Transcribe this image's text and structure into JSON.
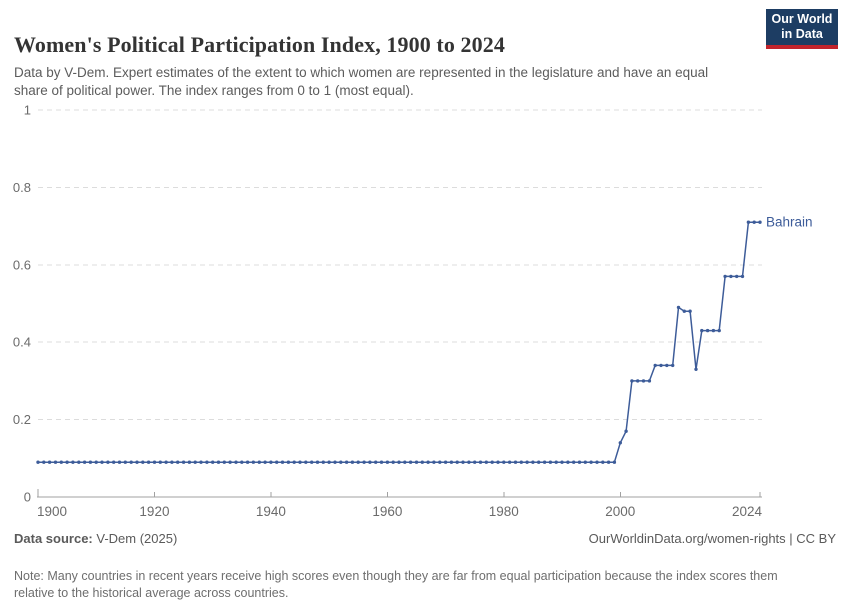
{
  "header": {
    "title": "Women's Political Participation Index, 1900 to 2024",
    "subtitle": "Data by V-Dem. Expert estimates of the extent to which women are represented in the legislature and have an equal share of political power. The index ranges from 0 to 1 (most equal).",
    "logo": {
      "line1": "Our World",
      "line2": "in Data",
      "bg_color": "#1d3d63",
      "accent_color": "#c2242c"
    }
  },
  "chart_data": {
    "type": "line",
    "title": "Women's Political Participation Index, 1900 to 2024",
    "xlabel": "",
    "ylabel": "",
    "xlim": [
      1900,
      2024
    ],
    "ylim": [
      0,
      1
    ],
    "x_ticks": [
      1900,
      1920,
      1940,
      1960,
      1980,
      2000,
      2024
    ],
    "y_ticks": [
      0,
      0.2,
      0.4,
      0.6,
      0.8,
      1
    ],
    "y_tick_labels": [
      "0",
      "0.2",
      "0.4",
      "0.6",
      "0.8",
      "1"
    ],
    "grid": "horizontal-dashed",
    "legend_position": "end-of-line-label",
    "colors": {
      "line": "#3d5c99",
      "gridline": "#dcdcdc",
      "axis": "#a1a1a1",
      "tick_label": "#6b6b6b"
    },
    "series": [
      {
        "name": "Bahrain",
        "color": "#3d5c99",
        "marker": "circle",
        "x_start": 1900,
        "x_step": 1,
        "values": [
          0.09,
          0.09,
          0.09,
          0.09,
          0.09,
          0.09,
          0.09,
          0.09,
          0.09,
          0.09,
          0.09,
          0.09,
          0.09,
          0.09,
          0.09,
          0.09,
          0.09,
          0.09,
          0.09,
          0.09,
          0.09,
          0.09,
          0.09,
          0.09,
          0.09,
          0.09,
          0.09,
          0.09,
          0.09,
          0.09,
          0.09,
          0.09,
          0.09,
          0.09,
          0.09,
          0.09,
          0.09,
          0.09,
          0.09,
          0.09,
          0.09,
          0.09,
          0.09,
          0.09,
          0.09,
          0.09,
          0.09,
          0.09,
          0.09,
          0.09,
          0.09,
          0.09,
          0.09,
          0.09,
          0.09,
          0.09,
          0.09,
          0.09,
          0.09,
          0.09,
          0.09,
          0.09,
          0.09,
          0.09,
          0.09,
          0.09,
          0.09,
          0.09,
          0.09,
          0.09,
          0.09,
          0.09,
          0.09,
          0.09,
          0.09,
          0.09,
          0.09,
          0.09,
          0.09,
          0.09,
          0.09,
          0.09,
          0.09,
          0.09,
          0.09,
          0.09,
          0.09,
          0.09,
          0.09,
          0.09,
          0.09,
          0.09,
          0.09,
          0.09,
          0.09,
          0.09,
          0.09,
          0.09,
          0.09,
          0.09,
          0.14,
          0.17,
          0.3,
          0.3,
          0.3,
          0.3,
          0.34,
          0.34,
          0.34,
          0.34,
          0.49,
          0.48,
          0.48,
          0.33,
          0.43,
          0.43,
          0.43,
          0.43,
          0.57,
          0.57,
          0.57,
          0.57,
          0.71,
          0.71,
          0.71
        ]
      }
    ]
  },
  "footer": {
    "source_label": "Data source:",
    "source_value": " V-Dem (2025)",
    "link": "OurWorldinData.org/women-rights | CC BY",
    "note_label": "Note:",
    "note_value": " Many countries in recent years receive high scores even though they are far from equal participation because the index scores them relative to the historical average across countries."
  }
}
